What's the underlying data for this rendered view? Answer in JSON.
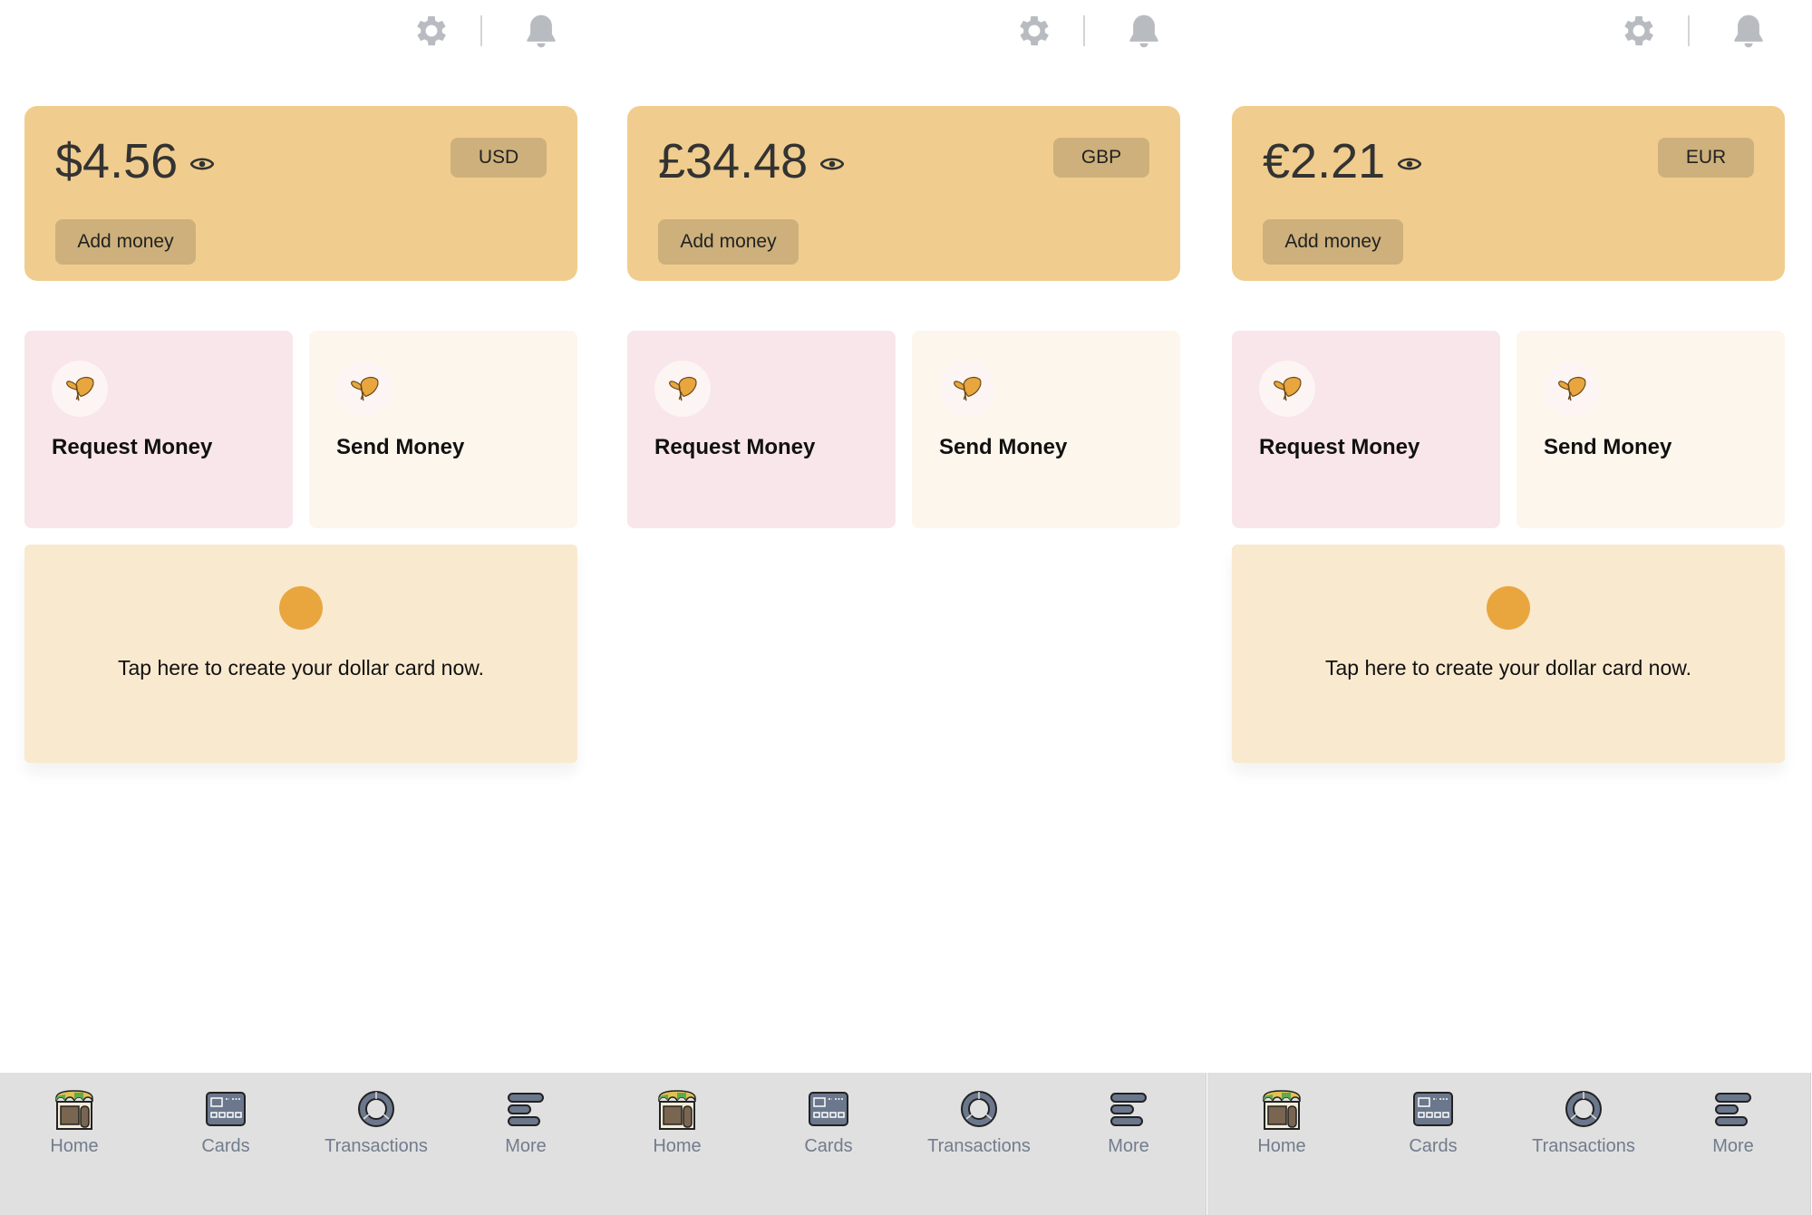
{
  "panels": [
    {
      "balance": "$4.56",
      "currency": "USD",
      "add_money": "Add money",
      "request": "Request Money",
      "send": "Send Money",
      "dollar_card": {
        "visible": true,
        "text": "Tap here to create your dollar card now."
      }
    },
    {
      "balance": "£34.48",
      "currency": "GBP",
      "add_money": "Add money",
      "request": "Request Money",
      "send": "Send Money",
      "dollar_card": {
        "visible": false,
        "text": ""
      }
    },
    {
      "balance": "€2.21",
      "currency": "EUR",
      "add_money": "Add money",
      "request": "Request Money",
      "send": "Send Money",
      "dollar_card": {
        "visible": true,
        "text": "Tap here to create your dollar card now."
      }
    }
  ],
  "nav": [
    {
      "label": "Home",
      "icon": "storefront-icon"
    },
    {
      "label": "Cards",
      "icon": "card-icon"
    },
    {
      "label": "Transactions",
      "icon": "donut-icon"
    },
    {
      "label": "More",
      "icon": "menu-icon"
    }
  ],
  "colors": {
    "balance_card": "#f0cd8e",
    "pill": "#cdb07b",
    "request_bg": "#f8e6ea",
    "send_bg": "#fdf6ec",
    "dollar_bg": "#f9e9cf",
    "accent": "#e9a63e",
    "nav_bg": "#e0e0e0"
  }
}
